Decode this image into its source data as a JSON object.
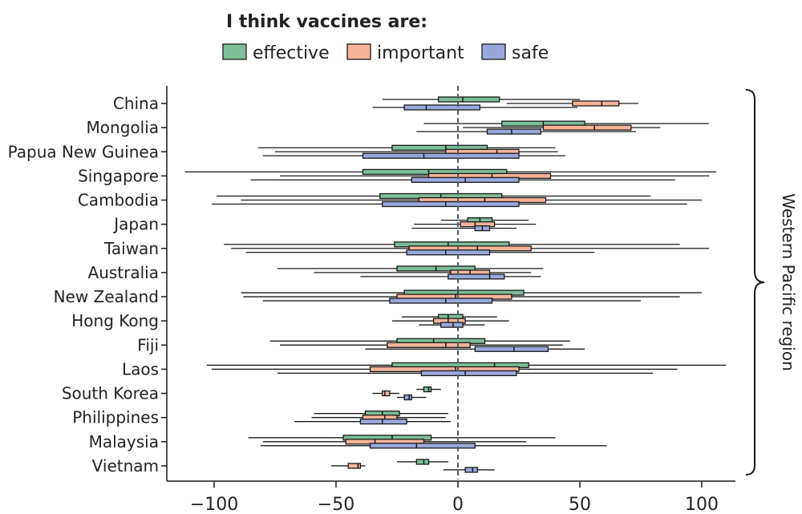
{
  "chart_data": {
    "type": "boxplot",
    "title": "I think vaccines are:",
    "legend": {
      "placement": "top-center",
      "items": [
        {
          "name": "effective",
          "color": "#7dbf98"
        },
        {
          "name": "important",
          "color": "#f7b39a"
        },
        {
          "name": "safe",
          "color": "#99a8dc"
        }
      ]
    },
    "xlim": [
      -115,
      113
    ],
    "xticks": [
      -100,
      -50,
      0,
      50,
      100
    ],
    "xtick_labels": [
      "−100",
      "−50",
      "0",
      "50",
      "100"
    ],
    "reference_line": 0,
    "group_label": "Western Pacific region",
    "categories": [
      "China",
      "Mongolia",
      "Papua New Guinea",
      "Singapore",
      "Cambodia",
      "Japan",
      "Taiwan",
      "Australia",
      "New Zealand",
      "Hong Kong",
      "Fiji",
      "Laos",
      "South Korea",
      "Philippines",
      "Malaysia",
      "Vietnam"
    ],
    "series": [
      {
        "name": "effective",
        "boxes": [
          {
            "min": -31,
            "q1": -8,
            "median": 2,
            "q3": 17,
            "max": 50
          },
          {
            "min": -14,
            "q1": 18,
            "median": 35,
            "q3": 52,
            "max": 103
          },
          {
            "min": -82,
            "q1": -27,
            "median": -5,
            "q3": 12,
            "max": 40
          },
          {
            "min": -112,
            "q1": -39,
            "median": -12,
            "q3": 20,
            "max": 106
          },
          {
            "min": -99,
            "q1": -32,
            "median": -7,
            "q3": 18,
            "max": 79
          },
          {
            "min": -7,
            "q1": 4,
            "median": 9,
            "q3": 14,
            "max": 29
          },
          {
            "min": -96,
            "q1": -26,
            "median": -4,
            "q3": 21,
            "max": 91
          },
          {
            "min": -74,
            "q1": -25,
            "median": -9,
            "q3": 7,
            "max": 35
          },
          {
            "min": -89,
            "q1": -22,
            "median": 0,
            "q3": 27,
            "max": 100
          },
          {
            "min": -23,
            "q1": -8,
            "median": -4,
            "q3": 2,
            "max": 16
          },
          {
            "min": -77,
            "q1": -25,
            "median": -10,
            "q3": 11,
            "max": 46
          },
          {
            "min": -103,
            "q1": -27,
            "median": 15,
            "q3": 29,
            "max": 110
          },
          {
            "min": -17,
            "q1": -14,
            "median": -12,
            "q3": -11,
            "max": -7
          },
          {
            "min": -59,
            "q1": -38,
            "median": -31,
            "q3": -24,
            "max": -4
          },
          {
            "min": -86,
            "q1": -47,
            "median": -27,
            "q3": -11,
            "max": 40
          },
          {
            "min": -25,
            "q1": -17,
            "median": -14,
            "q3": -12,
            "max": -4
          }
        ]
      },
      {
        "name": "important",
        "boxes": [
          {
            "min": 20,
            "q1": 47,
            "median": 59,
            "q3": 66,
            "max": 74
          },
          {
            "min": 2,
            "q1": 35,
            "median": 56,
            "q3": 71,
            "max": 83
          },
          {
            "min": -75,
            "q1": -5,
            "median": 16,
            "q3": 25,
            "max": 41
          },
          {
            "min": -73,
            "q1": -12,
            "median": 14,
            "q3": 38,
            "max": 103
          },
          {
            "min": -89,
            "q1": -16,
            "median": 11,
            "q3": 36,
            "max": 100
          },
          {
            "min": -18,
            "q1": 1,
            "median": 7,
            "q3": 15,
            "max": 32
          },
          {
            "min": -93,
            "q1": -20,
            "median": 8,
            "q3": 30,
            "max": 103
          },
          {
            "min": -59,
            "q1": -3,
            "median": 5,
            "q3": 13,
            "max": 30
          },
          {
            "min": -88,
            "q1": -25,
            "median": -1,
            "q3": 22,
            "max": 91
          },
          {
            "min": -27,
            "q1": -10,
            "median": -4,
            "q3": 3,
            "max": 21
          },
          {
            "min": -73,
            "q1": -29,
            "median": -5,
            "q3": 5,
            "max": 43
          },
          {
            "min": -101,
            "q1": -36,
            "median": -1,
            "q3": 25,
            "max": 90
          },
          {
            "min": -35,
            "q1": -31,
            "median": -30,
            "q3": -28,
            "max": -24
          },
          {
            "min": -60,
            "q1": -39,
            "median": -30,
            "q3": -25,
            "max": -5
          },
          {
            "min": -80,
            "q1": -46,
            "median": -34,
            "q3": -14,
            "max": 28
          },
          {
            "min": -52,
            "q1": -45,
            "median": -41,
            "q3": -40,
            "max": -38
          }
        ]
      },
      {
        "name": "safe",
        "boxes": [
          {
            "min": -35,
            "q1": -22,
            "median": -13,
            "q3": 9,
            "max": 49
          },
          {
            "min": -17,
            "q1": 12,
            "median": 22,
            "q3": 34,
            "max": 73
          },
          {
            "min": -80,
            "q1": -39,
            "median": -14,
            "q3": 25,
            "max": 44
          },
          {
            "min": -85,
            "q1": -19,
            "median": 3,
            "q3": 25,
            "max": 89
          },
          {
            "min": -101,
            "q1": -31,
            "median": -5,
            "q3": 25,
            "max": 94
          },
          {
            "min": -19,
            "q1": 7,
            "median": 10,
            "q3": 13,
            "max": 24
          },
          {
            "min": -87,
            "q1": -21,
            "median": -5,
            "q3": 13,
            "max": 56
          },
          {
            "min": -40,
            "q1": -4,
            "median": 13,
            "q3": 19,
            "max": 34
          },
          {
            "min": -80,
            "q1": -28,
            "median": -5,
            "q3": 14,
            "max": 75
          },
          {
            "min": -16,
            "q1": -7,
            "median": -2,
            "q3": 2,
            "max": 11
          },
          {
            "min": -38,
            "q1": 7,
            "median": 23,
            "q3": 37,
            "max": 52
          },
          {
            "min": -74,
            "q1": -15,
            "median": 3,
            "q3": 24,
            "max": 80
          },
          {
            "min": -25,
            "q1": -22,
            "median": -20,
            "q3": -19,
            "max": -13
          },
          {
            "min": -67,
            "q1": -40,
            "median": -31,
            "q3": -21,
            "max": -3
          },
          {
            "min": -81,
            "q1": -36,
            "median": -17,
            "q3": 7,
            "max": 61
          },
          {
            "min": -6,
            "q1": 3,
            "median": 6,
            "q3": 8,
            "max": 15
          }
        ]
      }
    ]
  }
}
